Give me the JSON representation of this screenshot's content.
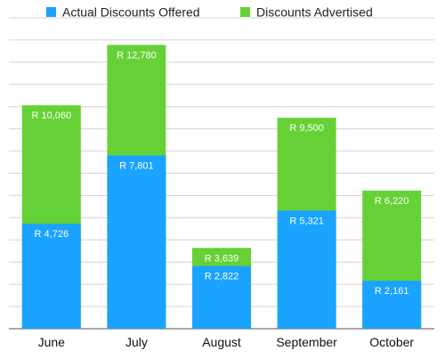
{
  "chart_data": {
    "type": "bar",
    "stacked": false,
    "overlapping_bars": true,
    "categories": [
      "June",
      "July",
      "August",
      "September",
      "October"
    ],
    "series": [
      {
        "name": "Actual Discounts Offered",
        "color": "#1AA3FF",
        "values": [
          4726,
          7801,
          2822,
          5321,
          2161
        ],
        "labels": [
          "R 4,726",
          "R 7,801",
          "R 2,822",
          "R 5,321",
          "R 2,161"
        ]
      },
      {
        "name": "Discounts Advertised",
        "color": "#66D136",
        "values": [
          10060,
          12780,
          3639,
          9500,
          6220
        ],
        "labels": [
          "R 10,060",
          "R 12,780",
          "R 3,639",
          "R 9,500",
          "R 6,220"
        ]
      }
    ],
    "ylim": [
      0,
      14000
    ],
    "gridlines": true,
    "legend_position": "top-left",
    "title": "",
    "xlabel": "",
    "ylabel": ""
  }
}
